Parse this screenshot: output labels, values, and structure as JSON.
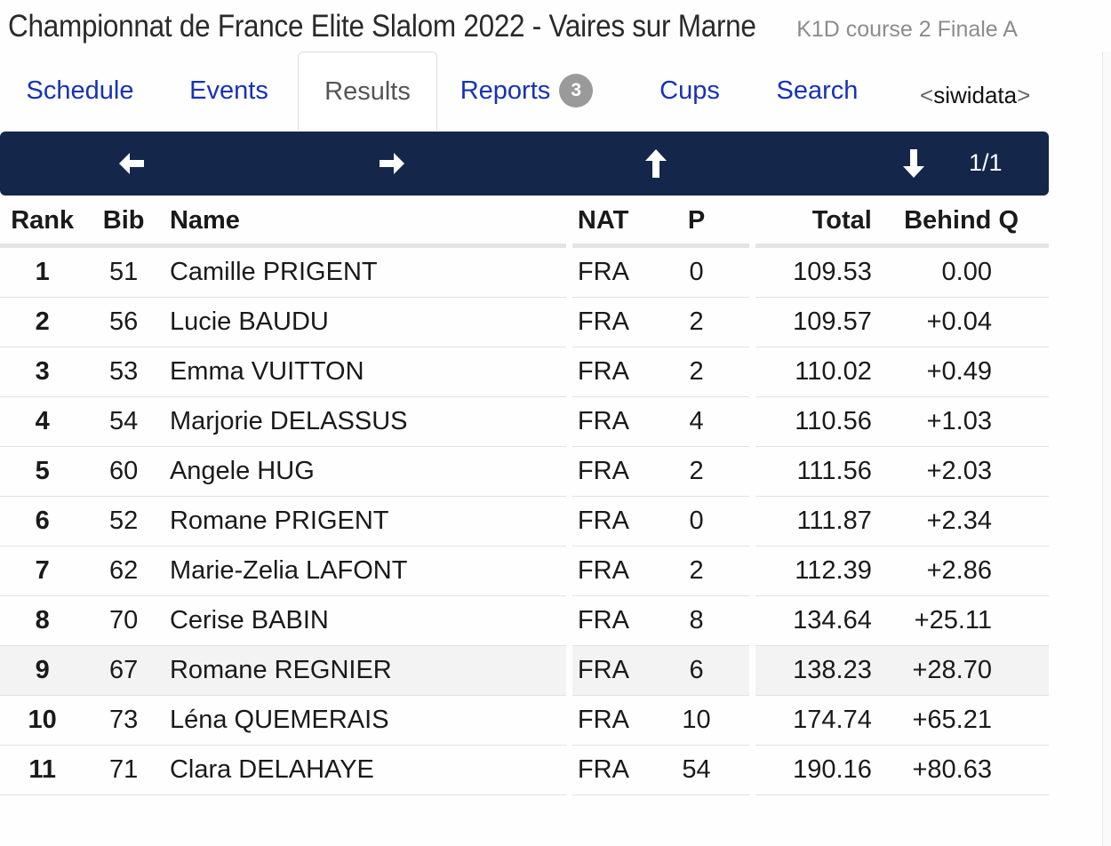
{
  "header": {
    "title": "Championnat de France Elite Slalom 2022 - Vaires sur Marne",
    "subtitle": "K1D course 2 Finale A"
  },
  "tabs": [
    {
      "label": "Schedule"
    },
    {
      "label": "Events"
    },
    {
      "label": "Results",
      "active": true
    },
    {
      "label": "Reports",
      "badge": "3"
    },
    {
      "label": "Cups"
    },
    {
      "label": "Search"
    }
  ],
  "brand": {
    "open": "<",
    "name": "siwidata",
    "close": ">"
  },
  "navbar": {
    "page": "1/1"
  },
  "table": {
    "columns": [
      "Rank",
      "Bib",
      "Name",
      "NAT",
      "P",
      "Total",
      "Behind Q"
    ],
    "rows": [
      [
        "1",
        "51",
        "Camille PRIGENT",
        "FRA",
        "0",
        "109.53",
        "0.00"
      ],
      [
        "2",
        "56",
        "Lucie BAUDU",
        "FRA",
        "2",
        "109.57",
        "+0.04"
      ],
      [
        "3",
        "53",
        "Emma VUITTON",
        "FRA",
        "2",
        "110.02",
        "+0.49"
      ],
      [
        "4",
        "54",
        "Marjorie DELASSUS",
        "FRA",
        "4",
        "110.56",
        "+1.03"
      ],
      [
        "5",
        "60",
        "Angele HUG",
        "FRA",
        "2",
        "111.56",
        "+2.03"
      ],
      [
        "6",
        "52",
        "Romane PRIGENT",
        "FRA",
        "0",
        "111.87",
        "+2.34"
      ],
      [
        "7",
        "62",
        "Marie-Zelia LAFONT",
        "FRA",
        "2",
        "112.39",
        "+2.86"
      ],
      [
        "8",
        "70",
        "Cerise BABIN",
        "FRA",
        "8",
        "134.64",
        "+25.11"
      ],
      [
        "9",
        "67",
        "Romane REGNIER",
        "FRA",
        "6",
        "138.23",
        "+28.70"
      ],
      [
        "10",
        "73",
        "Léna QUEMERAIS",
        "FRA",
        "10",
        "174.74",
        "+65.21"
      ],
      [
        "11",
        "71",
        "Clara DELAHAYE",
        "FRA",
        "54",
        "190.16",
        "+80.63"
      ]
    ]
  },
  "colors": {
    "link": "#1632b8",
    "navbar": "#14274b",
    "badge": "#9a9a9a"
  }
}
